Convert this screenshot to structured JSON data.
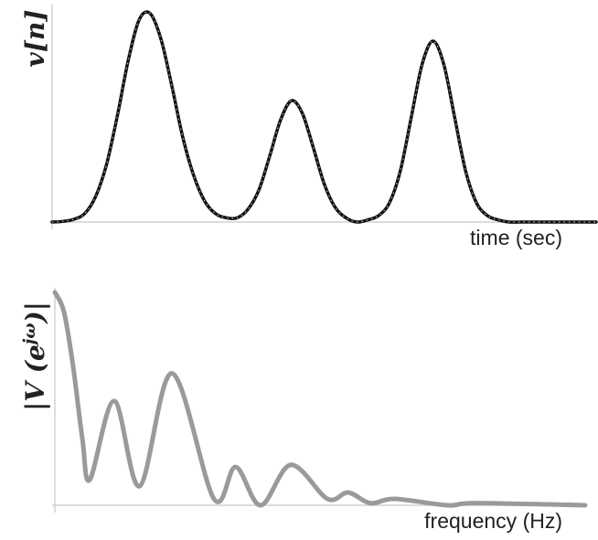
{
  "chart_data": [
    {
      "type": "line",
      "x_label": "time (sec)",
      "y_label": "v[n]",
      "x": [
        0,
        2,
        4,
        6,
        8,
        10,
        12,
        14,
        16,
        18,
        20,
        22,
        24,
        26,
        28,
        30,
        32,
        34,
        36,
        38,
        40,
        42,
        44,
        46,
        48,
        50,
        52,
        54,
        56,
        58,
        60,
        62,
        64,
        66,
        68,
        70,
        72,
        74,
        76,
        78,
        80,
        82,
        84,
        86,
        88,
        90,
        92,
        94,
        96,
        98,
        100
      ],
      "values": [
        0,
        0.003,
        0.013,
        0.04,
        0.12,
        0.27,
        0.5,
        0.76,
        0.95,
        0.98,
        0.86,
        0.64,
        0.4,
        0.22,
        0.1,
        0.04,
        0.02,
        0.02,
        0.06,
        0.15,
        0.31,
        0.48,
        0.57,
        0.51,
        0.35,
        0.18,
        0.07,
        0.02,
        0,
        0.01,
        0.03,
        0.09,
        0.24,
        0.49,
        0.74,
        0.85,
        0.74,
        0.49,
        0.24,
        0.09,
        0.03,
        0.01,
        0,
        0,
        0,
        0,
        0,
        0,
        0,
        0,
        0
      ],
      "color": "#111111",
      "xlim": [
        0,
        100
      ],
      "ylim": [
        0,
        1
      ]
    },
    {
      "type": "line",
      "x_label": "frequency (Hz)",
      "y_label": {
        "base": "|V (e",
        "sup": "jω",
        "close": ")|"
      },
      "x": [
        0,
        1.7,
        3.4,
        5.2,
        6.6,
        11.2,
        16,
        22.1,
        30,
        34.1,
        38.8,
        44.5,
        51.4,
        55.3,
        59.5,
        64.1,
        74,
        79.3,
        100
      ],
      "values": [
        1,
        0.91,
        0.66,
        0.31,
        0.12,
        0.49,
        0.09,
        0.62,
        0.03,
        0.18,
        0,
        0.19,
        0.03,
        0.06,
        0.01,
        0.03,
        0,
        0.01,
        0
      ],
      "color": "#9a9a9a",
      "xlim": [
        0,
        100
      ],
      "ylim": [
        0,
        1
      ]
    }
  ]
}
